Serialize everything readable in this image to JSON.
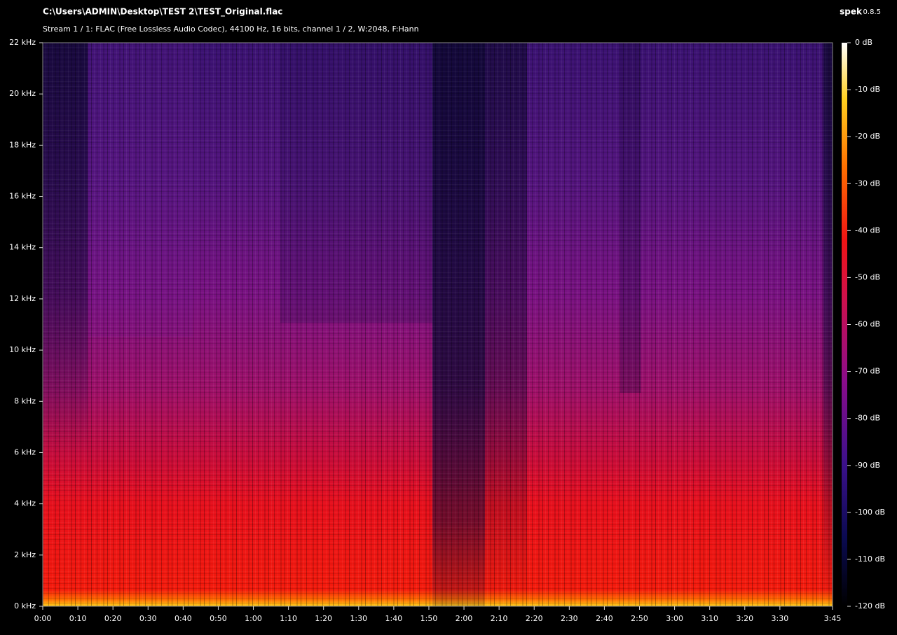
{
  "chart_data": {
    "type": "spectrogram",
    "title": "C:\\Users\\ADMIN\\Desktop\\TEST 2\\TEST_Original.flac",
    "subtitle": "Stream 1 / 1: FLAC (Free Lossless Audio Codec), 44100 Hz, 16 bits, channel 1 / 2, W:2048, F:Hann",
    "app_name": "spek",
    "app_version": "0.8.5",
    "xlim": [
      0,
      225
    ],
    "xticks": [
      {
        "value": 0,
        "label": "0:00"
      },
      {
        "value": 10,
        "label": "0:10"
      },
      {
        "value": 20,
        "label": "0:20"
      },
      {
        "value": 30,
        "label": "0:30"
      },
      {
        "value": 40,
        "label": "0:40"
      },
      {
        "value": 50,
        "label": "0:50"
      },
      {
        "value": 60,
        "label": "1:00"
      },
      {
        "value": 70,
        "label": "1:10"
      },
      {
        "value": 80,
        "label": "1:20"
      },
      {
        "value": 90,
        "label": "1:30"
      },
      {
        "value": 100,
        "label": "1:40"
      },
      {
        "value": 110,
        "label": "1:50"
      },
      {
        "value": 120,
        "label": "2:00"
      },
      {
        "value": 130,
        "label": "2:10"
      },
      {
        "value": 140,
        "label": "2:20"
      },
      {
        "value": 150,
        "label": "2:30"
      },
      {
        "value": 160,
        "label": "2:40"
      },
      {
        "value": 170,
        "label": "2:50"
      },
      {
        "value": 180,
        "label": "3:00"
      },
      {
        "value": 190,
        "label": "3:10"
      },
      {
        "value": 200,
        "label": "3:20"
      },
      {
        "value": 210,
        "label": "3:30"
      },
      {
        "value": 225,
        "label": "3:45"
      }
    ],
    "ylim": [
      0,
      22
    ],
    "yticks": [
      {
        "value": 0,
        "label": "0 kHz"
      },
      {
        "value": 2,
        "label": "2 kHz"
      },
      {
        "value": 4,
        "label": "4 kHz"
      },
      {
        "value": 6,
        "label": "6 kHz"
      },
      {
        "value": 8,
        "label": "8 kHz"
      },
      {
        "value": 10,
        "label": "10 kHz"
      },
      {
        "value": 12,
        "label": "12 kHz"
      },
      {
        "value": 14,
        "label": "14 kHz"
      },
      {
        "value": 16,
        "label": "16 kHz"
      },
      {
        "value": 18,
        "label": "18 kHz"
      },
      {
        "value": 20,
        "label": "20 kHz"
      },
      {
        "value": 22,
        "label": "22 kHz"
      }
    ],
    "colorbar_lim": [
      -120,
      0
    ],
    "colorbar_ticks": [
      {
        "value": 0,
        "label": "0 dB"
      },
      {
        "value": -10,
        "label": "-10 dB"
      },
      {
        "value": -20,
        "label": "-20 dB"
      },
      {
        "value": -30,
        "label": "-30 dB"
      },
      {
        "value": -40,
        "label": "-40 dB"
      },
      {
        "value": -50,
        "label": "-50 dB"
      },
      {
        "value": -60,
        "label": "-60 dB"
      },
      {
        "value": -70,
        "label": "-70 dB"
      },
      {
        "value": -80,
        "label": "-80 dB"
      },
      {
        "value": -90,
        "label": "-90 dB"
      },
      {
        "value": -100,
        "label": "-100 dB"
      },
      {
        "value": -110,
        "label": "-110 dB"
      },
      {
        "value": -120,
        "label": "-120 dB"
      }
    ]
  }
}
